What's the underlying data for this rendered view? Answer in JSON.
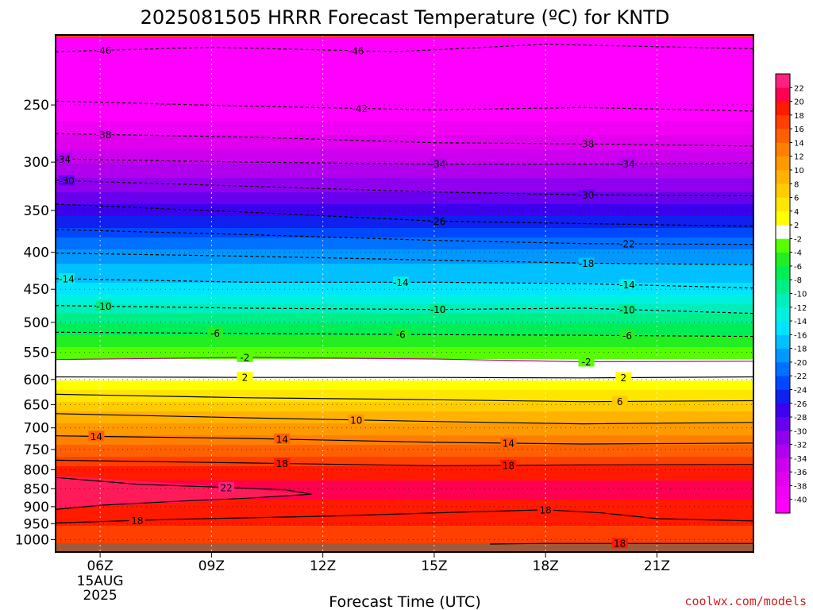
{
  "chart_data": {
    "type": "heatmap",
    "title": "2025081505 HRRR Forecast Temperature (ºC) for KNTD",
    "xlabel": "Forecast Time (UTC)",
    "ylabel": "",
    "x_range_hours_utc": [
      4.8,
      23.6
    ],
    "y_range_hpa": [
      200,
      1040
    ],
    "y_scale": "log",
    "x_ticks": [
      {
        "hour": 6,
        "label": "06Z",
        "sub": [
          "15AUG",
          "2025"
        ]
      },
      {
        "hour": 9,
        "label": "09Z",
        "sub": []
      },
      {
        "hour": 12,
        "label": "12Z",
        "sub": []
      },
      {
        "hour": 15,
        "label": "15Z",
        "sub": []
      },
      {
        "hour": 18,
        "label": "18Z",
        "sub": []
      },
      {
        "hour": 21,
        "label": "21Z",
        "sub": []
      }
    ],
    "y_ticks": [
      250,
      300,
      350,
      400,
      450,
      500,
      550,
      600,
      650,
      700,
      750,
      800,
      850,
      900,
      950,
      1000
    ],
    "grid": true,
    "colorbar": {
      "position": "right",
      "levels": [
        -40,
        -38,
        -36,
        -34,
        -32,
        -30,
        -28,
        -26,
        -24,
        -22,
        -20,
        -18,
        -16,
        -14,
        -12,
        -10,
        -8,
        -6,
        -4,
        -2,
        2,
        4,
        6,
        8,
        10,
        12,
        14,
        16,
        18,
        20,
        22
      ],
      "colors": [
        "#ff00ff",
        "#f000f4",
        "#e000ee",
        "#cc00ee",
        "#b000ee",
        "#9000ee",
        "#6800ee",
        "#3c00ee",
        "#1020ee",
        "#0048ff",
        "#0070ff",
        "#0098ff",
        "#00c0ff",
        "#00e4ff",
        "#00f0e0",
        "#00eebb",
        "#00ee88",
        "#00ee55",
        "#22ee22",
        "#55ff00",
        "#ffffff",
        "#ffff00",
        "#ffe600",
        "#ffcc00",
        "#ffb200",
        "#ff9900",
        "#ff8000",
        "#ff6000",
        "#ff4000",
        "#ff1a00",
        "#ff0050",
        "#ff2080"
      ]
    },
    "contours": [
      {
        "label": "-46",
        "points": [
          [
            4.8,
            211
          ],
          [
            9,
            208
          ],
          [
            14,
            211
          ],
          [
            18,
            206
          ],
          [
            23.6,
            209
          ]
        ],
        "labels_at": [
          6.1,
          12.9
        ]
      },
      {
        "label": "-42",
        "points": [
          [
            4.8,
            247
          ],
          [
            10,
            251
          ],
          [
            15,
            254
          ],
          [
            19,
            252
          ],
          [
            23.6,
            255
          ]
        ],
        "labels_at": [
          13.0
        ]
      },
      {
        "label": "-38",
        "points": [
          [
            4.8,
            274
          ],
          [
            10,
            277
          ],
          [
            15,
            282
          ],
          [
            19,
            283
          ],
          [
            23.6,
            285
          ]
        ],
        "labels_at": [
          6.1,
          19.1
        ]
      },
      {
        "label": "-34",
        "points": [
          [
            4.8,
            297
          ],
          [
            10,
            300
          ],
          [
            15,
            302
          ],
          [
            19,
            302
          ],
          [
            23.6,
            301
          ]
        ],
        "labels_at": [
          5.0,
          15.1,
          20.2
        ]
      },
      {
        "label": "-30",
        "points": [
          [
            4.8,
            318
          ],
          [
            10,
            324
          ],
          [
            15,
            330
          ],
          [
            19,
            333
          ],
          [
            23.6,
            334
          ]
        ],
        "labels_at": [
          5.1,
          19.1
        ]
      },
      {
        "label": "-26",
        "points": [
          [
            4.8,
            343
          ],
          [
            10,
            352
          ],
          [
            15,
            362
          ],
          [
            19,
            365
          ],
          [
            23.6,
            368
          ]
        ],
        "labels_at": [
          15.1
        ]
      },
      {
        "label": "-22",
        "points": [
          [
            4.8,
            372
          ],
          [
            10,
            378
          ],
          [
            15,
            385
          ],
          [
            19,
            389
          ],
          [
            23.6,
            390
          ]
        ],
        "labels_at": [
          20.2
        ]
      },
      {
        "label": "-18",
        "points": [
          [
            4.8,
            401
          ],
          [
            10,
            405
          ],
          [
            15,
            410
          ],
          [
            19,
            414
          ],
          [
            23.6,
            416
          ]
        ],
        "labels_at": [
          19.1
        ]
      },
      {
        "label": "-14",
        "points": [
          [
            4.8,
            435
          ],
          [
            10,
            440
          ],
          [
            15,
            440
          ],
          [
            19,
            442
          ],
          [
            23.6,
            448
          ]
        ],
        "labels_at": [
          5.1,
          14.1,
          20.2
        ]
      },
      {
        "label": "-10",
        "points": [
          [
            4.8,
            474
          ],
          [
            10,
            478
          ],
          [
            15,
            480
          ],
          [
            19,
            478
          ],
          [
            23.6,
            486
          ]
        ],
        "labels_at": [
          6.1,
          15.1,
          20.2
        ]
      },
      {
        "label": "-6",
        "points": [
          [
            4.8,
            516
          ],
          [
            10,
            518
          ],
          [
            15,
            520
          ],
          [
            19,
            521
          ],
          [
            23.6,
            523
          ]
        ],
        "labels_at": [
          9.1,
          14.1,
          20.2
        ]
      },
      {
        "label": "-2",
        "points": [
          [
            4.8,
            563
          ],
          [
            10,
            559
          ],
          [
            15,
            562
          ],
          [
            19,
            567
          ],
          [
            23.6,
            566
          ]
        ],
        "labels_at": [
          9.9,
          19.1
        ]
      },
      {
        "label": "2",
        "points": [
          [
            4.8,
            595
          ],
          [
            10,
            596
          ],
          [
            15,
            596
          ],
          [
            19,
            597
          ],
          [
            23.6,
            595
          ]
        ],
        "labels_at": [
          9.9,
          20.1
        ]
      },
      {
        "label": "6",
        "points": [
          [
            4.8,
            629
          ],
          [
            10,
            636
          ],
          [
            15,
            640
          ],
          [
            19,
            644
          ],
          [
            23.6,
            642
          ]
        ],
        "labels_at": [
          20.0
        ]
      },
      {
        "label": "10",
        "points": [
          [
            4.8,
            669
          ],
          [
            10,
            678
          ],
          [
            15,
            686
          ],
          [
            19,
            691
          ],
          [
            23.6,
            688
          ]
        ],
        "labels_at": [
          12.9
        ]
      },
      {
        "label": "14",
        "points": [
          [
            4.8,
            718
          ],
          [
            10,
            724
          ],
          [
            15,
            733
          ],
          [
            19,
            737
          ],
          [
            23.6,
            735
          ]
        ],
        "labels_at": [
          5.9,
          10.9,
          17.0
        ]
      },
      {
        "label": "18",
        "points": [
          [
            4.8,
            776
          ],
          [
            10,
            783
          ],
          [
            15,
            790
          ],
          [
            19,
            788
          ],
          [
            23.6,
            787
          ]
        ],
        "labels_at": [
          10.9,
          17.0
        ]
      },
      {
        "label": "22",
        "points": [
          [
            4.8,
            820
          ],
          [
            7,
            838
          ],
          [
            9,
            845
          ],
          [
            11,
            853
          ],
          [
            11.7,
            865
          ],
          [
            10,
            876
          ],
          [
            8,
            885
          ],
          [
            6,
            896
          ],
          [
            4.8,
            908
          ]
        ],
        "labels_at": [
          9.4
        ]
      },
      {
        "label": "18",
        "points": [
          [
            4.8,
            948
          ],
          [
            8,
            937
          ],
          [
            12,
            928
          ],
          [
            16,
            915
          ],
          [
            18,
            909
          ],
          [
            19.5,
            918
          ],
          [
            21,
            935
          ],
          [
            23.6,
            942
          ]
        ],
        "labels_at": [
          7.0,
          18.0
        ]
      },
      {
        "label": "18",
        "points": [
          [
            16.5,
            1014
          ],
          [
            18,
            1012
          ],
          [
            21,
            1012
          ],
          [
            23.6,
            1012
          ]
        ],
        "labels_at": [
          20.0
        ]
      }
    ]
  },
  "credit": "coolwx.com/models"
}
